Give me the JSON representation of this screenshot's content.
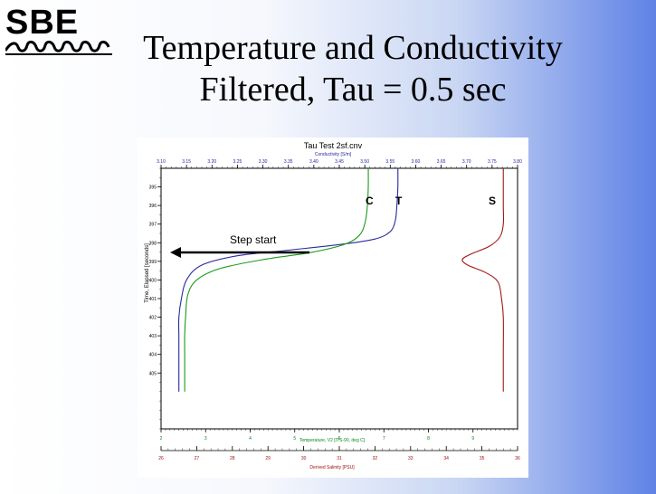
{
  "logo": {
    "text": "SBE"
  },
  "slide": {
    "title_line1": "Temperature and Conductivity",
    "title_line2": "Filtered, Tau = 0.5 sec"
  },
  "chart_data": {
    "type": "line",
    "title": "Tau Test 2sf.cnv",
    "y_label": "Time, Elapsed [seconds]",
    "y_range": [
      394,
      408
    ],
    "y_ticks": [
      395,
      396,
      397,
      398,
      399,
      400,
      401,
      402,
      403,
      404,
      405
    ],
    "top_axis": {
      "label": "Conductivity [S/m]",
      "range": [
        3.1,
        3.8
      ],
      "ticks": [
        "3.10",
        "3.15",
        "3.20",
        "3.25",
        "3.30",
        "3.35",
        "3.40",
        "3.45",
        "3.50",
        "3.55",
        "3.60",
        "3.65",
        "3.70",
        "3.75",
        "3.80"
      ],
      "color": "#1f1f9a"
    },
    "bottom_axis_1": {
      "label": "Temperature, V2 [ITS-90, deg C]",
      "range": [
        2,
        10
      ],
      "ticks": [
        "2",
        "3",
        "4",
        "5",
        "6",
        "7",
        "8",
        "9"
      ],
      "color": "#0a8a1a"
    },
    "bottom_axis_2": {
      "label": "Derived Salinity [PSU]",
      "range": [
        26,
        36
      ],
      "ticks": [
        "26",
        "27",
        "28",
        "29",
        "30",
        "31",
        "32",
        "33",
        "34",
        "35",
        "36"
      ],
      "color": "#a01010"
    },
    "series": [
      {
        "name": "C",
        "axis": "top",
        "color": "#2a2aa0",
        "points": [
          [
            3.565,
            394
          ],
          [
            3.565,
            395
          ],
          [
            3.563,
            396
          ],
          [
            3.56,
            396.8
          ],
          [
            3.55,
            397.4
          ],
          [
            3.52,
            397.8
          ],
          [
            3.45,
            398.1
          ],
          [
            3.35,
            398.4
          ],
          [
            3.25,
            398.7
          ],
          [
            3.18,
            399.2
          ],
          [
            3.15,
            400
          ],
          [
            3.14,
            401
          ],
          [
            3.135,
            402
          ],
          [
            3.135,
            403
          ],
          [
            3.135,
            404
          ],
          [
            3.135,
            405
          ],
          [
            3.135,
            406
          ]
        ]
      },
      {
        "name": "T",
        "axis": "bottom1",
        "color": "#1a9a1a",
        "points": [
          [
            6.65,
            394
          ],
          [
            6.65,
            395
          ],
          [
            6.63,
            396
          ],
          [
            6.58,
            396.9
          ],
          [
            6.45,
            397.6
          ],
          [
            6.1,
            398.1
          ],
          [
            5.3,
            398.55
          ],
          [
            4.3,
            398.9
          ],
          [
            3.3,
            399.4
          ],
          [
            2.8,
            400
          ],
          [
            2.6,
            400.8
          ],
          [
            2.55,
            402
          ],
          [
            2.53,
            403
          ],
          [
            2.53,
            404
          ],
          [
            2.53,
            405
          ],
          [
            2.53,
            406
          ]
        ]
      },
      {
        "name": "S",
        "axis": "bottom2",
        "color": "#a01818",
        "points": [
          [
            35.6,
            394
          ],
          [
            35.6,
            396
          ],
          [
            35.6,
            397
          ],
          [
            35.5,
            397.7
          ],
          [
            35.2,
            398.2
          ],
          [
            34.7,
            398.6
          ],
          [
            34.45,
            398.9
          ],
          [
            34.6,
            399.2
          ],
          [
            35.1,
            399.6
          ],
          [
            35.45,
            400.1
          ],
          [
            35.55,
            401
          ],
          [
            35.6,
            402
          ],
          [
            35.6,
            404
          ],
          [
            35.6,
            406
          ]
        ]
      }
    ],
    "annotations": [
      {
        "text": "Step start",
        "y": 398.2,
        "arrow": "left"
      },
      {
        "text": "C"
      },
      {
        "text": "T"
      },
      {
        "text": "S"
      }
    ]
  }
}
